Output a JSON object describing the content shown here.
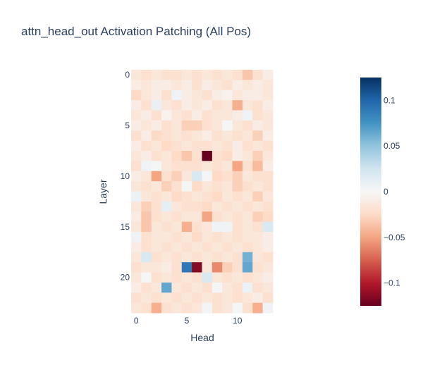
{
  "chart_data": {
    "type": "heatmap",
    "title": "attn_head_out Activation Patching (All Pos)",
    "xlabel": "Head",
    "ylabel": "Layer",
    "n_layers": 24,
    "n_heads": 14,
    "x_ticks": [
      0,
      5,
      10
    ],
    "y_ticks": [
      0,
      5,
      10,
      15,
      20
    ],
    "colorscale": "RdBu",
    "zmin": -0.125,
    "zmax": 0.125,
    "colorbar": {
      "tickvals": [
        0.1,
        0.05,
        0,
        -0.05,
        -0.1
      ],
      "ticktext": [
        "0.1",
        "0.05",
        "0",
        "−0.05",
        "−0.1"
      ]
    },
    "z": [
      [
        -0.015,
        -0.02,
        -0.015,
        -0.02,
        -0.02,
        -0.015,
        -0.02,
        -0.015,
        -0.02,
        -0.015,
        -0.02,
        -0.035,
        -0.02,
        -0.01
      ],
      [
        -0.01,
        -0.015,
        -0.01,
        -0.01,
        -0.015,
        -0.01,
        -0.02,
        -0.01,
        -0.015,
        -0.02,
        -0.01,
        -0.015,
        -0.01,
        -0.015
      ],
      [
        -0.025,
        -0.015,
        -0.01,
        -0.02,
        0.005,
        -0.01,
        -0.015,
        -0.02,
        -0.01,
        -0.005,
        -0.015,
        -0.01,
        -0.01,
        -0.015
      ],
      [
        -0.01,
        -0.02,
        0.01,
        -0.015,
        -0.02,
        -0.01,
        -0.015,
        -0.01,
        -0.02,
        -0.015,
        -0.045,
        -0.015,
        -0.02,
        -0.01
      ],
      [
        -0.015,
        -0.01,
        -0.02,
        -0.005,
        -0.015,
        -0.02,
        -0.01,
        -0.02,
        -0.015,
        -0.015,
        -0.01,
        0.005,
        -0.02,
        -0.015
      ],
      [
        -0.01,
        -0.015,
        -0.01,
        -0.02,
        -0.015,
        -0.03,
        -0.03,
        -0.02,
        -0.015,
        0.002,
        -0.015,
        -0.02,
        -0.01,
        -0.015
      ],
      [
        -0.02,
        -0.01,
        -0.025,
        -0.02,
        -0.015,
        -0.02,
        -0.015,
        -0.01,
        -0.02,
        -0.015,
        -0.02,
        -0.015,
        -0.03,
        -0.01
      ],
      [
        -0.01,
        -0.02,
        -0.015,
        -0.025,
        -0.02,
        -0.015,
        -0.02,
        -0.02,
        -0.015,
        -0.02,
        -0.01,
        -0.02,
        -0.015,
        -0.02
      ],
      [
        -0.015,
        -0.01,
        -0.02,
        -0.015,
        -0.025,
        -0.035,
        -0.02,
        -0.125,
        -0.02,
        -0.025,
        -0.01,
        -0.015,
        -0.03,
        -0.015
      ],
      [
        -0.02,
        0.005,
        0.002,
        -0.015,
        -0.02,
        -0.02,
        -0.02,
        -0.015,
        -0.02,
        -0.015,
        -0.05,
        -0.02,
        -0.04,
        -0.01
      ],
      [
        -0.01,
        -0.015,
        -0.05,
        -0.02,
        -0.03,
        -0.015,
        0.02,
        0.002,
        -0.025,
        -0.02,
        -0.03,
        -0.015,
        -0.02,
        -0.02
      ],
      [
        -0.015,
        -0.02,
        -0.015,
        -0.03,
        -0.02,
        0.002,
        -0.025,
        -0.015,
        -0.02,
        -0.015,
        -0.03,
        -0.02,
        -0.015,
        -0.02
      ],
      [
        0.008,
        -0.015,
        -0.02,
        -0.015,
        -0.025,
        -0.02,
        -0.015,
        -0.02,
        -0.025,
        -0.015,
        -0.02,
        -0.015,
        -0.03,
        -0.015
      ],
      [
        -0.015,
        -0.03,
        -0.02,
        0.012,
        -0.015,
        -0.02,
        -0.02,
        -0.025,
        -0.015,
        -0.02,
        -0.015,
        -0.02,
        -0.015,
        -0.02
      ],
      [
        -0.01,
        -0.035,
        -0.02,
        -0.015,
        -0.02,
        -0.015,
        -0.015,
        -0.05,
        -0.02,
        -0.015,
        -0.02,
        -0.015,
        -0.03,
        -0.025
      ],
      [
        -0.015,
        -0.035,
        -0.015,
        -0.02,
        -0.015,
        -0.045,
        -0.02,
        -0.015,
        0.005,
        0.005,
        -0.02,
        -0.015,
        -0.02,
        0.02
      ],
      [
        0.005,
        -0.02,
        -0.015,
        -0.015,
        -0.02,
        -0.015,
        -0.025,
        -0.015,
        -0.02,
        -0.015,
        -0.02,
        -0.015,
        -0.015,
        -0.01
      ],
      [
        -0.01,
        -0.02,
        -0.015,
        -0.02,
        -0.015,
        -0.02,
        -0.015,
        -0.02,
        -0.015,
        -0.02,
        -0.015,
        -0.02,
        -0.015,
        -0.01
      ],
      [
        -0.015,
        0.02,
        -0.02,
        -0.015,
        -0.02,
        -0.015,
        -0.02,
        -0.015,
        -0.02,
        -0.015,
        -0.02,
        0.06,
        -0.015,
        -0.02
      ],
      [
        -0.02,
        -0.015,
        -0.015,
        -0.01,
        -0.02,
        0.09,
        -0.115,
        -0.015,
        -0.06,
        -0.03,
        -0.02,
        0.065,
        -0.02,
        -0.015
      ],
      [
        -0.015,
        0.002,
        -0.02,
        -0.015,
        -0.02,
        -0.015,
        -0.02,
        0.02,
        -0.015,
        -0.02,
        -0.015,
        -0.02,
        -0.015,
        -0.01
      ],
      [
        -0.01,
        -0.02,
        -0.015,
        0.065,
        -0.015,
        -0.02,
        -0.015,
        -0.02,
        0.002,
        -0.015,
        -0.02,
        0.008,
        -0.02,
        -0.015
      ],
      [
        -0.02,
        -0.015,
        -0.02,
        -0.015,
        -0.02,
        -0.015,
        -0.02,
        -0.015,
        -0.02,
        -0.015,
        -0.02,
        -0.015,
        -0.01,
        -0.02
      ],
      [
        -0.015,
        -0.02,
        -0.045,
        -0.02,
        -0.015,
        -0.02,
        -0.015,
        0.003,
        -0.02,
        -0.015,
        0.002,
        -0.02,
        -0.045,
        0.005
      ]
    ]
  }
}
